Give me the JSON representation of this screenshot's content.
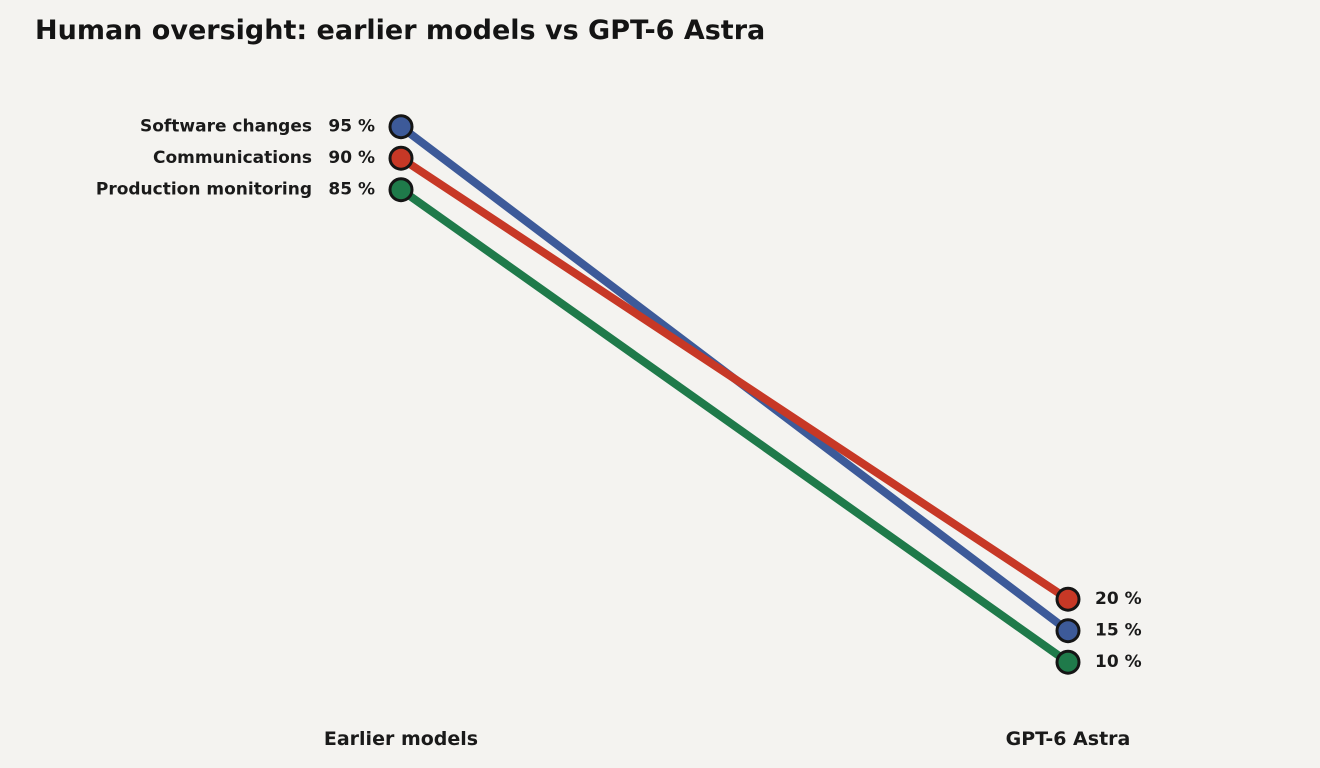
{
  "chart_data": {
    "type": "line",
    "title": "Human oversight: earlier models vs GPT-6 Astra",
    "categories": [
      "Earlier models",
      "GPT-6 Astra"
    ],
    "unit": " %",
    "ylim": [
      0,
      100
    ],
    "grid": false,
    "legend": "none",
    "series": [
      {
        "name": "Software changes",
        "values": [
          95,
          15
        ],
        "color": "#3d5a99"
      },
      {
        "name": "Communications",
        "values": [
          90,
          20
        ],
        "color": "#c73826"
      },
      {
        "name": "Production monitoring",
        "values": [
          85,
          10
        ],
        "color": "#1f7a4a"
      }
    ]
  }
}
